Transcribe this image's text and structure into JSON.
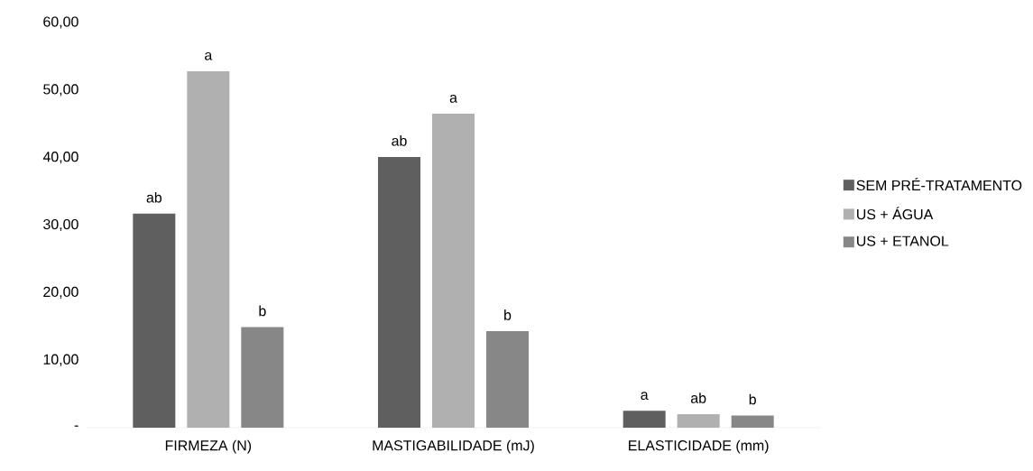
{
  "chart_data": {
    "type": "bar",
    "categories": [
      "FIRMEZA (N)",
      "MASTIGABILIDADE (mJ)",
      "ELASTICIDADE (mm)"
    ],
    "series": [
      {
        "name": "SEM PRÉ-TRATAMENTO",
        "color": "#5f5f5f",
        "values": [
          31.7,
          40.1,
          2.5
        ],
        "value_labels": [
          "ab",
          "ab",
          "a"
        ]
      },
      {
        "name": "US + ÁGUA",
        "color": "#b0b0b0",
        "values": [
          52.8,
          46.5,
          2.0
        ],
        "value_labels": [
          "a",
          "a",
          "ab"
        ]
      },
      {
        "name": "US + ETANOL",
        "color": "#878787",
        "values": [
          14.9,
          14.3,
          1.8
        ],
        "value_labels": [
          "b",
          "b",
          "b"
        ]
      }
    ],
    "ylim": [
      0,
      60
    ],
    "yticks": [
      {
        "value": 0,
        "label": "-"
      },
      {
        "value": 10,
        "label": "10,00"
      },
      {
        "value": 20,
        "label": "20,00"
      },
      {
        "value": 30,
        "label": "30,00"
      },
      {
        "value": 40,
        "label": "40,00"
      },
      {
        "value": 50,
        "label": "50,00"
      },
      {
        "value": 60,
        "label": "60,00"
      }
    ],
    "legend": "right"
  }
}
